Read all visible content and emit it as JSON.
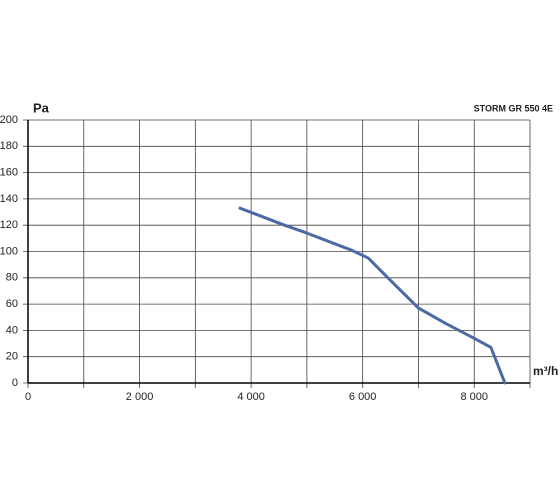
{
  "chart_data": {
    "type": "line",
    "title": "STORM GR 550 4E",
    "y_label": "Pa",
    "x_label": "m³/h",
    "x": [
      3800,
      4600,
      5000,
      5800,
      6100,
      6500,
      7000,
      7500,
      8000,
      8300,
      8550
    ],
    "series": [
      {
        "name": "STORM GR 550 4E",
        "color": "#4a6aa5",
        "values": [
          133,
          120,
          114,
          101,
          95,
          78,
          57,
          45,
          34,
          27,
          0
        ]
      }
    ],
    "xlim": [
      0,
      9000
    ],
    "xticks": [
      0,
      {
        "value": 2000,
        "label": "2 000"
      },
      {
        "value": 4000,
        "label": "4 000"
      },
      {
        "value": 6000,
        "label": "6 000"
      },
      {
        "value": 8000,
        "label": "8 000"
      }
    ],
    "xgrid": [
      1000,
      3000,
      5000,
      7000,
      9000
    ],
    "ylim": [
      0,
      200
    ],
    "yticks": [
      0,
      20,
      40,
      60,
      80,
      100,
      120,
      140,
      160,
      180,
      200
    ],
    "grid": true
  }
}
